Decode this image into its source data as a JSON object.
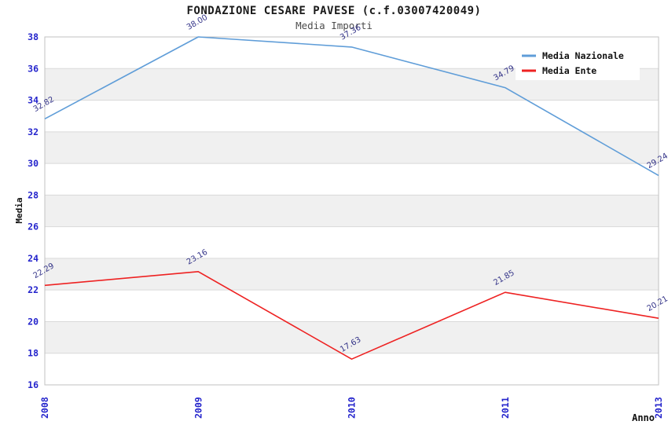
{
  "title": "FONDAZIONE CESARE PAVESE (c.f.03007420049)",
  "subtitle": "Media Importi",
  "chart_data": {
    "type": "line",
    "x_categories": [
      "2008",
      "2009",
      "2010",
      "2011",
      "2013"
    ],
    "series": [
      {
        "name": "Media Nazionale",
        "color": "#5f9dd8",
        "values": [
          32.82,
          38.0,
          37.36,
          34.79,
          29.24
        ],
        "point_labels": [
          "32.82",
          "38.00",
          "37.36",
          "34.79",
          "29.24"
        ]
      },
      {
        "name": "Media Ente",
        "color": "#ee2222",
        "values": [
          22.29,
          23.16,
          17.63,
          21.85,
          20.21
        ],
        "point_labels": [
          "22.29",
          "23.16",
          "17.63",
          "21.85",
          "20.21"
        ]
      }
    ],
    "xlabel": "Anno",
    "ylabel": "Media",
    "ylim": [
      16,
      38
    ],
    "ytick_step": 2,
    "yticks": [
      "16",
      "18",
      "20",
      "22",
      "24",
      "26",
      "28",
      "30",
      "32",
      "34",
      "36",
      "38"
    ],
    "grid": true,
    "alternating_bands": true,
    "legend_position": "top-right"
  },
  "colors": {
    "tick_label": "#2424cc",
    "point_label": "#333388",
    "band_fill": "#f0f0f0",
    "gridline": "#d9d9d9",
    "axis_border": "#c2c2c2",
    "legend_bg": "#ffffff",
    "axis_title": "#111111",
    "background": "#ffffff"
  }
}
